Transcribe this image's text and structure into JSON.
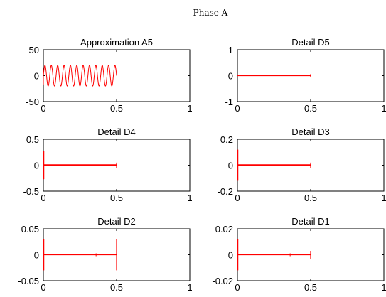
{
  "figure_title": "Phase A",
  "colors": {
    "signal": "#ff0000",
    "axes": "#000000",
    "background": "#ffffff"
  },
  "chart_data": [
    {
      "type": "line",
      "title": "Approximation A5",
      "xlim": [
        0,
        1
      ],
      "ylim": [
        -50,
        50
      ],
      "xticks": [
        "0",
        "0.5",
        "1"
      ],
      "yticks": [
        "50",
        "0",
        "-50"
      ],
      "series": [
        {
          "kind": "sine",
          "x_start": 0,
          "x_end": 0.5,
          "amplitude": 20,
          "cycles": 11.5,
          "spike_at_start": -17
        }
      ]
    },
    {
      "type": "line",
      "title": "Detail D5",
      "xlim": [
        0,
        1
      ],
      "ylim": [
        -1,
        1
      ],
      "xticks": [
        "0",
        "0.5",
        "1"
      ],
      "yticks": [
        "1",
        "0",
        "-1"
      ],
      "series": [
        {
          "kind": "flat",
          "x_start": 0,
          "x_end": 0.5,
          "value": 0,
          "start_spike": [
            0,
            0
          ],
          "end_cap": 0.06
        }
      ]
    },
    {
      "type": "line",
      "title": "Detail D4",
      "xlim": [
        0,
        1
      ],
      "ylim": [
        -0.5,
        0.5
      ],
      "xticks": [
        "0",
        "0.5",
        "1"
      ],
      "yticks": [
        "0.5",
        "0",
        "-0.5"
      ],
      "series": [
        {
          "kind": "flat",
          "x_start": 0,
          "x_end": 0.5,
          "value": 0,
          "start_spike": [
            -0.27,
            0.27
          ],
          "end_cap": 0.05,
          "thick": true
        }
      ]
    },
    {
      "type": "line",
      "title": "Detail D3",
      "xlim": [
        0,
        1
      ],
      "ylim": [
        -0.2,
        0.2
      ],
      "xticks": [
        "0",
        "0.5",
        "1"
      ],
      "yticks": [
        "0.2",
        "0",
        "-0.2"
      ],
      "series": [
        {
          "kind": "flat",
          "x_start": 0,
          "x_end": 0.5,
          "value": 0,
          "start_spike": [
            -0.12,
            0.12
          ],
          "end_cap": 0.02,
          "thick": true
        }
      ]
    },
    {
      "type": "line",
      "title": "Detail D2",
      "xlim": [
        0,
        1
      ],
      "ylim": [
        -0.05,
        0.05
      ],
      "xticks": [
        "0",
        "0.5",
        "1"
      ],
      "yticks": [
        "0.05",
        "0",
        "-0.05"
      ],
      "series": [
        {
          "kind": "flat",
          "x_start": 0,
          "x_end": 0.5,
          "value": 0,
          "start_spike": [
            -0.03,
            0.03
          ],
          "end_cap": 0.03,
          "mid_tick": 0.36
        }
      ]
    },
    {
      "type": "line",
      "title": "Detail D1",
      "xlim": [
        0,
        1
      ],
      "ylim": [
        -0.02,
        0.02
      ],
      "xticks": [
        "0",
        "0.5",
        "1"
      ],
      "yticks": [
        "0.02",
        "0",
        "-0.02"
      ],
      "series": [
        {
          "kind": "flat",
          "x_start": 0,
          "x_end": 0.5,
          "value": 0,
          "start_spike": [
            -0.012,
            0.012
          ],
          "end_cap": 0.003,
          "mid_tick": 0.36
        }
      ]
    }
  ]
}
